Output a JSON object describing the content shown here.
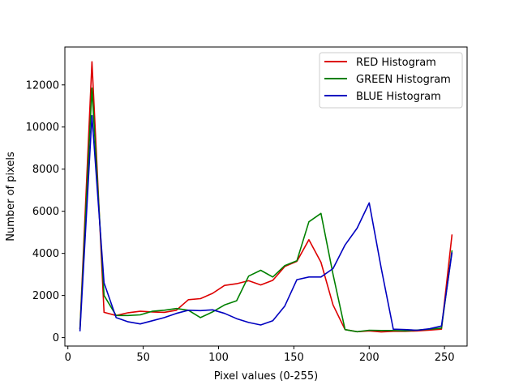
{
  "chart_data": {
    "type": "line",
    "xlabel": "Pixel values (0-255)",
    "ylabel": "Number of pixels",
    "xlim": [
      -2,
      265
    ],
    "ylim": [
      -400,
      13800
    ],
    "xticks": [
      0,
      50,
      100,
      150,
      200,
      250
    ],
    "yticks": [
      0,
      2000,
      4000,
      6000,
      8000,
      10000,
      12000
    ],
    "legend_position": "top-right",
    "grid": false,
    "x": [
      8,
      16,
      24,
      32,
      40,
      48,
      56,
      64,
      72,
      80,
      88,
      96,
      104,
      112,
      120,
      128,
      136,
      144,
      152,
      160,
      168,
      176,
      184,
      192,
      200,
      208,
      216,
      224,
      232,
      240,
      248,
      255
    ],
    "series": [
      {
        "name": "RED Histogram",
        "color": "#dd0000",
        "values": [
          400,
          13100,
          1200,
          1050,
          1180,
          1250,
          1220,
          1200,
          1300,
          1800,
          1850,
          2100,
          2480,
          2560,
          2700,
          2500,
          2720,
          3380,
          3620,
          4650,
          3580,
          1550,
          380,
          280,
          320,
          270,
          300,
          300,
          320,
          360,
          400,
          4900
        ]
      },
      {
        "name": "GREEN Histogram",
        "color": "#008000",
        "values": [
          400,
          11850,
          2000,
          1050,
          1050,
          1080,
          1250,
          1300,
          1380,
          1300,
          950,
          1220,
          1550,
          1750,
          2920,
          3200,
          2880,
          3420,
          3650,
          5500,
          5900,
          3000,
          380,
          280,
          350,
          340,
          340,
          320,
          360,
          400,
          450,
          4150
        ]
      },
      {
        "name": "BLUE Histogram",
        "color": "#0000c0",
        "values": [
          300,
          10550,
          2600,
          950,
          750,
          650,
          800,
          950,
          1150,
          1300,
          1280,
          1320,
          1150,
          900,
          720,
          600,
          800,
          1500,
          2750,
          2880,
          2880,
          3280,
          4400,
          5200,
          6400,
          3300,
          400,
          380,
          350,
          420,
          550,
          4050
        ]
      }
    ]
  }
}
